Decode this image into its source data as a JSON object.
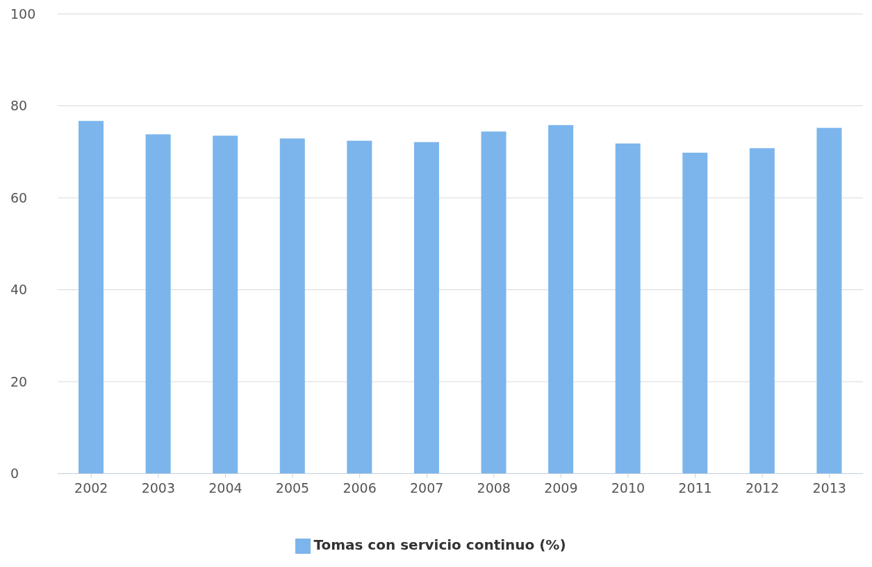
{
  "chart_data": {
    "type": "bar",
    "categories": [
      "2002",
      "2003",
      "2004",
      "2005",
      "2006",
      "2007",
      "2008",
      "2009",
      "2010",
      "2011",
      "2012",
      "2013"
    ],
    "series": [
      {
        "name": "Tomas con servicio continuo (%)",
        "color": "#7cb5ec",
        "values": [
          76.7,
          73.8,
          73.5,
          72.9,
          72.4,
          72.1,
          74.4,
          75.8,
          71.8,
          69.8,
          70.8,
          75.2
        ]
      }
    ],
    "ylim": [
      0,
      100
    ],
    "yticks": [
      0,
      20,
      40,
      60,
      80,
      100
    ],
    "grid": "y",
    "legend": "bottom"
  }
}
